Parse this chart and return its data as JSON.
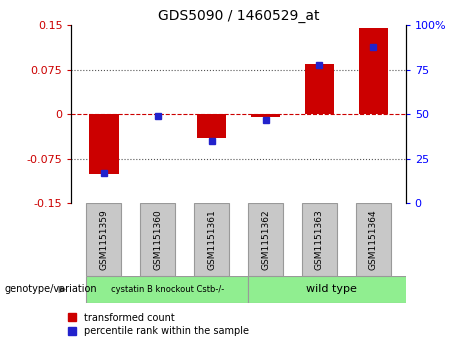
{
  "title": "GDS5090 / 1460529_at",
  "samples": [
    "GSM1151359",
    "GSM1151360",
    "GSM1151361",
    "GSM1151362",
    "GSM1151363",
    "GSM1151364"
  ],
  "transformed_count": [
    -0.1,
    0.0,
    -0.04,
    -0.005,
    0.085,
    0.145
  ],
  "percentile_rank": [
    17,
    49,
    35,
    47,
    78,
    88
  ],
  "ylim_left": [
    -0.15,
    0.15
  ],
  "ylim_right": [
    0,
    100
  ],
  "yticks_left": [
    -0.15,
    -0.075,
    0,
    0.075,
    0.15
  ],
  "yticks_right": [
    0,
    25,
    50,
    75,
    100
  ],
  "bar_color_red": "#CC0000",
  "bar_color_blue": "#2222CC",
  "dotted_color": "#555555",
  "bg_color": "white",
  "legend_red_label": "transformed count",
  "legend_blue_label": "percentile rank within the sample",
  "genotype_label": "genotype/variation",
  "bar_width": 0.55,
  "blue_marker_size": 5,
  "sample_box_color": "#C8C8C8",
  "group1_color": "#90EE90",
  "group2_color": "#90EE90",
  "group1_label": "cystatin B knockout Cstb-/-",
  "group2_label": "wild type",
  "box_edge_color": "#999999"
}
